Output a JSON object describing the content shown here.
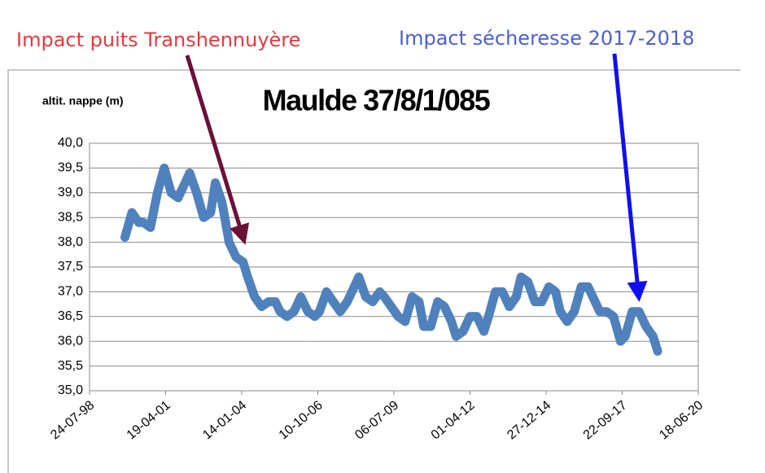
{
  "chart_data": {
    "type": "line",
    "title": "Maulde 37/8/1/085",
    "y_label": "altit. nappe (m)",
    "annotations": [
      {
        "text": "Impact puits Transhennuyère",
        "color": "#e8383d"
      },
      {
        "text": "Impact sécheresse 2017-2018",
        "color": "#4a5fd8"
      }
    ],
    "x": [
      "1999-11",
      "2000-02",
      "2000-05",
      "2000-07",
      "2000-10",
      "2001-01",
      "2001-04",
      "2001-07",
      "2001-10",
      "2001-12",
      "2002-03",
      "2002-06",
      "2002-09",
      "2002-12",
      "2003-02",
      "2003-05",
      "2003-08",
      "2003-11",
      "2004-02",
      "2004-04",
      "2004-07",
      "2004-10",
      "2005-01",
      "2005-04",
      "2005-06",
      "2005-09",
      "2005-12",
      "2006-03",
      "2006-06",
      "2006-09",
      "2006-11",
      "2007-02",
      "2007-05",
      "2007-08",
      "2007-11",
      "2008-01",
      "2008-04",
      "2008-07",
      "2008-10",
      "2009-01",
      "2009-03",
      "2009-06",
      "2009-09",
      "2009-12",
      "2010-03",
      "2010-06",
      "2010-08",
      "2010-11",
      "2011-02",
      "2011-05",
      "2011-08",
      "2011-10",
      "2012-01",
      "2012-04",
      "2012-07",
      "2012-10",
      "2012-12",
      "2013-03",
      "2013-06",
      "2013-09",
      "2013-12",
      "2014-02",
      "2014-05",
      "2014-08",
      "2014-11",
      "2015-02",
      "2015-05",
      "2015-07",
      "2015-10",
      "2016-01",
      "2016-04",
      "2016-07",
      "2016-09",
      "2016-12",
      "2017-03",
      "2017-06",
      "2017-09",
      "2017-11",
      "2018-02",
      "2018-05",
      "2018-08",
      "2018-11",
      "2019-01"
    ],
    "series": [
      {
        "color": "#4f81bd",
        "values": [
          38.1,
          38.6,
          38.4,
          38.4,
          38.3,
          39.0,
          39.5,
          39.0,
          38.9,
          39.1,
          39.4,
          39.0,
          38.5,
          38.6,
          39.2,
          38.8,
          38.0,
          37.7,
          37.6,
          37.3,
          36.9,
          36.7,
          36.8,
          36.8,
          36.6,
          36.5,
          36.6,
          36.9,
          36.6,
          36.5,
          36.6,
          37.0,
          36.8,
          36.6,
          36.8,
          37.0,
          37.3,
          36.9,
          36.8,
          37.0,
          36.9,
          36.7,
          36.5,
          36.4,
          36.9,
          36.8,
          36.3,
          36.3,
          36.8,
          36.7,
          36.4,
          36.1,
          36.2,
          36.5,
          36.5,
          36.2,
          36.5,
          37.0,
          37.0,
          36.7,
          36.9,
          37.3,
          37.2,
          36.8,
          36.8,
          37.1,
          37.0,
          36.6,
          36.4,
          36.6,
          37.1,
          37.1,
          36.9,
          36.6,
          36.6,
          36.5,
          36.0,
          36.1,
          36.6,
          36.6,
          36.3,
          36.1,
          35.8
        ]
      }
    ],
    "xlim": [
      "1998-07-24",
      "2020-06-18"
    ],
    "xticks": [
      {
        "value": "1998-07-24",
        "label": "24-07-98"
      },
      {
        "value": "2001-04-19",
        "label": "19-04-01"
      },
      {
        "value": "2004-01-14",
        "label": "14-01-04"
      },
      {
        "value": "2006-10-10",
        "label": "10-10-06"
      },
      {
        "value": "2009-07-06",
        "label": "06-07-09"
      },
      {
        "value": "2012-04-01",
        "label": "01-04-12"
      },
      {
        "value": "2014-12-27",
        "label": "27-12-14"
      },
      {
        "value": "2017-09-22",
        "label": "22-09-17"
      },
      {
        "value": "2020-06-18",
        "label": "18-06-20"
      }
    ],
    "ylim": [
      35,
      40
    ],
    "yticks": [
      {
        "value": 35,
        "label": "35,0"
      },
      {
        "value": 35.5,
        "label": "35,5"
      },
      {
        "value": 36,
        "label": "36,0"
      },
      {
        "value": 36.5,
        "label": "36,5"
      },
      {
        "value": 37,
        "label": "37,0"
      },
      {
        "value": 37.5,
        "label": "37,5"
      },
      {
        "value": 38,
        "label": "38,0"
      },
      {
        "value": 38.5,
        "label": "38,5"
      },
      {
        "value": 39,
        "label": "39,0"
      },
      {
        "value": 39.5,
        "label": "39,5"
      },
      {
        "value": 40,
        "label": "40,0"
      }
    ],
    "grid": true
  }
}
